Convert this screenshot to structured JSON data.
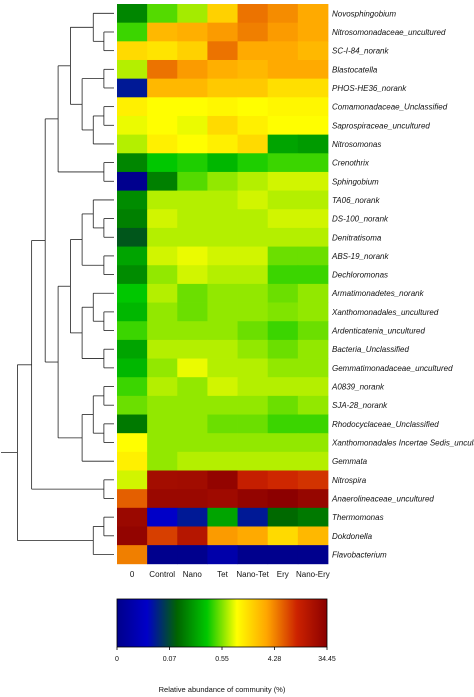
{
  "chart_data": {
    "type": "heatmap",
    "rows": [
      "Novosphingobium",
      "Nitrosomonadaceae_uncultured",
      "SC-I-84_norank",
      "Blastocatella",
      "PHOS-HE36_norank",
      "Comamonadaceae_Unclassified",
      "Saprospiraceae_uncultured",
      "Nitrosomonas",
      "Crenothrix",
      "Sphingobium",
      "TA06_norank",
      "DS-100_norank",
      "Denitratisoma",
      "ABS-19_norank",
      "Dechloromonas",
      "Armatimonadetes_norank",
      "Xanthomonadales_uncultured",
      "Ardenticatenia_uncultured",
      "Bacteria_Unclassified",
      "Gemmatimonadaceae_uncultured",
      "A0839_norank",
      "SJA-28_norank",
      "Rhodocyclaceae_Unclassified",
      "Xanthomonadales Incertae Sedis_uncultured",
      "Gemmata",
      "Nitrospira",
      "Anaerolineaceae_uncultured",
      "Thermomonas",
      "Dokdonella",
      "Flavobacterium"
    ],
    "columns": [
      "0",
      "Control",
      "Nano",
      "Tet",
      "Nano-Tet",
      "Ery",
      "Nano-Ery"
    ],
    "values": [
      [
        0.14,
        0.45,
        0.65,
        1.8,
        5.0,
        4.0,
        3.0
      ],
      [
        0.4,
        2.5,
        2.8,
        3.5,
        4.5,
        3.5,
        3.0
      ],
      [
        1.6,
        1.4,
        1.8,
        5.0,
        3.0,
        3.0,
        2.5
      ],
      [
        0.7,
        5.0,
        3.5,
        2.8,
        2.5,
        3.0,
        3.0
      ],
      [
        0.05,
        2.5,
        2.5,
        2.0,
        2.0,
        1.5,
        1.5
      ],
      [
        1.2,
        1.0,
        1.0,
        1.1,
        1.0,
        1.1,
        1.1
      ],
      [
        0.9,
        1.0,
        0.9,
        1.6,
        1.2,
        1.0,
        1.0
      ],
      [
        0.7,
        1.2,
        1.0,
        1.2,
        1.6,
        0.2,
        0.18
      ],
      [
        0.14,
        0.3,
        0.35,
        0.25,
        0.35,
        0.4,
        0.4
      ],
      [
        0.002,
        0.13,
        0.45,
        0.6,
        0.7,
        0.8,
        0.8
      ],
      [
        0.15,
        0.7,
        0.7,
        0.7,
        0.8,
        0.7,
        0.7
      ],
      [
        0.13,
        0.8,
        0.7,
        0.7,
        0.7,
        0.8,
        0.8
      ],
      [
        0.08,
        0.7,
        0.7,
        0.7,
        0.7,
        0.7,
        0.7
      ],
      [
        0.2,
        0.8,
        0.9,
        0.8,
        0.8,
        0.5,
        0.5
      ],
      [
        0.15,
        0.6,
        0.8,
        0.7,
        0.7,
        0.4,
        0.4
      ],
      [
        0.3,
        0.7,
        0.5,
        0.6,
        0.6,
        0.5,
        0.6
      ],
      [
        0.25,
        0.6,
        0.5,
        0.6,
        0.6,
        0.55,
        0.6
      ],
      [
        0.4,
        0.6,
        0.6,
        0.6,
        0.5,
        0.4,
        0.5
      ],
      [
        0.2,
        0.7,
        0.7,
        0.7,
        0.6,
        0.5,
        0.6
      ],
      [
        0.25,
        0.6,
        0.9,
        0.7,
        0.7,
        0.6,
        0.6
      ],
      [
        0.4,
        0.7,
        0.6,
        0.8,
        0.7,
        0.7,
        0.7
      ],
      [
        0.5,
        0.6,
        0.6,
        0.6,
        0.6,
        0.5,
        0.6
      ],
      [
        0.12,
        0.6,
        0.6,
        0.5,
        0.5,
        0.4,
        0.4
      ],
      [
        1.0,
        0.6,
        0.6,
        0.6,
        0.6,
        0.6,
        0.6
      ],
      [
        1.2,
        0.6,
        0.7,
        0.7,
        0.7,
        0.7,
        0.7
      ],
      [
        0.8,
        22,
        23,
        30,
        12,
        10,
        9
      ],
      [
        6.0,
        26,
        26,
        24,
        30,
        34,
        28
      ],
      [
        26,
        0.04,
        0.05,
        0.2,
        0.05,
        0.1,
        0.12
      ],
      [
        30,
        8,
        16,
        3.5,
        3,
        1.6,
        2.5
      ],
      [
        4.5,
        0.001,
        0.001,
        0.02,
        0.001,
        0.001,
        0.001
      ]
    ],
    "colorbar": {
      "title": "Relative abundance of community (%)",
      "tick_labels": [
        "0",
        "0.07",
        "0.55",
        "4.28",
        "34.45"
      ],
      "tick_values": [
        0,
        0.07,
        0.55,
        4.28,
        34.45
      ],
      "colors": [
        "#00008b",
        "#0000c8",
        "#006400",
        "#00c800",
        "#ffff00",
        "#ffa500",
        "#cc2200",
        "#8b0000"
      ],
      "scale": "log"
    },
    "row_dendrogram": "left",
    "legend_placement": "bottom"
  }
}
